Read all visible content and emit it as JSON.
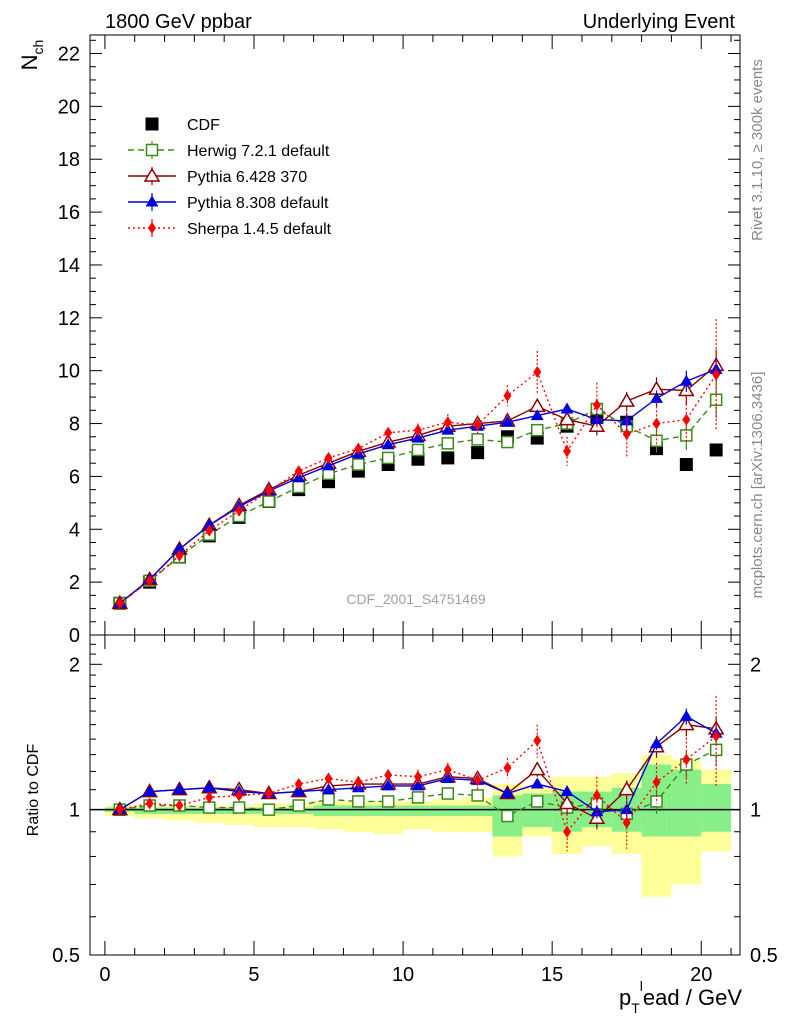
{
  "header": {
    "left": "1800 GeV ppbar",
    "right": "Underlying Event"
  },
  "side_text": {
    "upper": "Rivet 3.1.10, ≥ 300k events",
    "lower": "mcplots.cern.ch [arXiv:1306.3436]"
  },
  "watermark": "CDF_2001_S4751469",
  "colors": {
    "data": "#000000",
    "herwig": "#3a8a1a",
    "pythia6": "#8b0000",
    "pythia8": "#0000dd",
    "sherpa": "#ff0000",
    "band_outer": "#ffff99",
    "band_inner": "#88ee88"
  },
  "chart_data": [
    {
      "type": "line",
      "panel": "main",
      "ylabel_main": "N",
      "ylabel_sub": "ch",
      "xlim": [
        -0.5,
        21.3
      ],
      "ylim": [
        0,
        22.7
      ],
      "yticks": [
        0,
        2,
        4,
        6,
        8,
        10,
        12,
        14,
        16,
        18,
        20,
        22
      ],
      "legend_position": "top-left",
      "x": [
        0.5,
        1.5,
        2.5,
        3.5,
        4.5,
        5.5,
        6.5,
        7.5,
        8.5,
        9.5,
        10.5,
        11.5,
        12.5,
        13.5,
        14.5,
        15.5,
        16.5,
        17.5,
        18.5,
        19.5,
        20.5
      ],
      "series": [
        {
          "name": "CDF",
          "key": "data",
          "marker": "filled-square",
          "style": "none",
          "values": [
            1.2,
            2.0,
            2.95,
            3.75,
            4.45,
            5.05,
            5.5,
            5.8,
            6.2,
            6.45,
            6.65,
            6.7,
            6.9,
            7.5,
            7.45,
            7.9,
            8.25,
            8.05,
            7.05,
            6.45,
            7.0
          ]
        },
        {
          "name": "Herwig 7.2.1 default",
          "key": "herwig",
          "marker": "open-square",
          "style": "dashed",
          "values": [
            1.2,
            2.05,
            2.95,
            3.8,
            4.5,
            5.05,
            5.6,
            6.1,
            6.45,
            6.7,
            7.0,
            7.25,
            7.4,
            7.3,
            7.75,
            8.0,
            8.55,
            7.9,
            7.35,
            7.55,
            8.9
          ],
          "errors": [
            0.05,
            0.05,
            0.05,
            0.05,
            0.05,
            0.05,
            0.1,
            0.1,
            0.1,
            0.1,
            0.1,
            0.1,
            0.15,
            0.15,
            0.2,
            0.25,
            0.4,
            0.3,
            0.45,
            0.55,
            0.7
          ]
        },
        {
          "name": "Pythia 6.428 370",
          "key": "pythia6",
          "marker": "open-triangle",
          "style": "solid",
          "values": [
            1.2,
            2.1,
            3.25,
            4.15,
            4.9,
            5.5,
            6.05,
            6.5,
            6.95,
            7.3,
            7.55,
            7.9,
            8.0,
            8.1,
            8.65,
            8.15,
            7.9,
            8.85,
            9.3,
            9.25,
            10.2
          ],
          "errors": [
            0.05,
            0.05,
            0.05,
            0.05,
            0.05,
            0.05,
            0.1,
            0.1,
            0.1,
            0.1,
            0.1,
            0.1,
            0.15,
            0.2,
            0.3,
            0.35,
            0.35,
            0.35,
            0.45,
            0.55,
            0.6
          ]
        },
        {
          "name": "Pythia 8.308 default",
          "key": "pythia8",
          "marker": "filled-triangle",
          "style": "solid",
          "values": [
            1.2,
            2.1,
            3.25,
            4.15,
            4.85,
            5.45,
            5.95,
            6.4,
            6.85,
            7.2,
            7.45,
            7.75,
            7.9,
            8.05,
            8.3,
            8.55,
            8.15,
            8.1,
            8.95,
            9.6,
            10.05
          ],
          "errors": [
            0.05,
            0.05,
            0.05,
            0.05,
            0.05,
            0.05,
            0.05,
            0.1,
            0.1,
            0.1,
            0.1,
            0.1,
            0.1,
            0.15,
            0.15,
            0.2,
            0.25,
            0.3,
            0.3,
            0.4,
            0.45
          ]
        },
        {
          "name": "Sherpa 1.4.5 default",
          "key": "sherpa",
          "marker": "filled-diamond",
          "style": "dotted",
          "values": [
            1.2,
            2.05,
            3.0,
            3.95,
            4.7,
            5.45,
            6.2,
            6.7,
            7.05,
            7.65,
            7.75,
            8.05,
            7.95,
            9.05,
            9.95,
            6.95,
            8.7,
            7.6,
            8.0,
            8.15,
            9.85
          ],
          "errors": [
            0.05,
            0.05,
            0.05,
            0.05,
            0.05,
            0.1,
            0.1,
            0.15,
            0.15,
            0.2,
            0.25,
            0.3,
            0.35,
            0.4,
            0.8,
            0.55,
            0.85,
            0.9,
            0.8,
            0.9,
            2.1
          ]
        }
      ]
    },
    {
      "type": "line",
      "panel": "ratio",
      "xlabel_main": "p",
      "xlabel_sub": "T",
      "xlabel_sup": "l",
      "xlabel_rest": "ead / GeV",
      "ylabel": "Ratio to CDF",
      "xlim": [
        -0.5,
        21.3
      ],
      "ylim": [
        0.5,
        2.3
      ],
      "scale": "log",
      "xticks": [
        0,
        5,
        10,
        15,
        20
      ],
      "yticks": [
        0.5,
        1,
        2
      ],
      "bands": {
        "edges": [
          1,
          2,
          3,
          4,
          5,
          6,
          7,
          8,
          9,
          10,
          11,
          12,
          13,
          14,
          15,
          16,
          17,
          18,
          19,
          20,
          21
        ],
        "inner_low": [
          0.99,
          0.98,
          0.98,
          0.98,
          0.98,
          0.98,
          0.98,
          0.97,
          0.97,
          0.97,
          0.97,
          0.97,
          0.97,
          0.88,
          0.92,
          0.9,
          0.92,
          0.9,
          0.88,
          0.88,
          0.9
        ],
        "inner_high": [
          1.01,
          1.01,
          1.01,
          1.01,
          1.01,
          1.01,
          1.01,
          1.02,
          1.02,
          1.02,
          1.02,
          1.02,
          1.02,
          1.07,
          1.08,
          1.09,
          1.09,
          1.11,
          1.24,
          1.21,
          1.13
        ],
        "outer_low": [
          0.97,
          0.96,
          0.95,
          0.94,
          0.93,
          0.92,
          0.92,
          0.91,
          0.9,
          0.89,
          0.91,
          0.9,
          0.9,
          0.8,
          0.88,
          0.81,
          0.84,
          0.81,
          0.66,
          0.7,
          0.82
        ],
        "outer_high": [
          1.02,
          1.02,
          1.02,
          1.02,
          1.02,
          1.03,
          1.03,
          1.04,
          1.04,
          1.04,
          1.04,
          1.05,
          1.06,
          1.13,
          1.11,
          1.17,
          1.17,
          1.19,
          1.3,
          1.27,
          1.21
        ]
      },
      "x": [
        0.5,
        1.5,
        2.5,
        3.5,
        4.5,
        5.5,
        6.5,
        7.5,
        8.5,
        9.5,
        10.5,
        11.5,
        12.5,
        13.5,
        14.5,
        15.5,
        16.5,
        17.5,
        18.5,
        19.5,
        20.5
      ],
      "series": [
        {
          "name": "Herwig 7.2.1 default",
          "key": "herwig",
          "values": [
            1.0,
            1.02,
            1.02,
            1.01,
            1.01,
            1.0,
            1.02,
            1.05,
            1.04,
            1.04,
            1.06,
            1.08,
            1.07,
            0.97,
            1.04,
            1.01,
            1.03,
            0.98,
            1.04,
            1.24,
            1.33
          ],
          "errors": [
            0.01,
            0.01,
            0.01,
            0.01,
            0.01,
            0.01,
            0.01,
            0.01,
            0.01,
            0.01,
            0.02,
            0.02,
            0.02,
            0.02,
            0.03,
            0.03,
            0.05,
            0.04,
            0.06,
            0.08,
            0.1
          ]
        },
        {
          "name": "Pythia 6.428 370",
          "key": "pythia6",
          "values": [
            1.0,
            1.09,
            1.1,
            1.11,
            1.1,
            1.08,
            1.09,
            1.12,
            1.13,
            1.13,
            1.13,
            1.17,
            1.16,
            1.08,
            1.21,
            1.03,
            0.96,
            1.1,
            1.35,
            1.5,
            1.47
          ],
          "errors": [
            0.01,
            0.01,
            0.01,
            0.01,
            0.01,
            0.01,
            0.01,
            0.02,
            0.02,
            0.02,
            0.02,
            0.02,
            0.02,
            0.03,
            0.04,
            0.05,
            0.05,
            0.05,
            0.07,
            0.08,
            0.09
          ]
        },
        {
          "name": "Pythia 8.308 default",
          "key": "pythia8",
          "values": [
            1.0,
            1.09,
            1.1,
            1.11,
            1.09,
            1.08,
            1.09,
            1.1,
            1.11,
            1.12,
            1.12,
            1.16,
            1.15,
            1.08,
            1.13,
            1.09,
            0.99,
            1.0,
            1.37,
            1.56,
            1.44
          ],
          "errors": [
            0.01,
            0.01,
            0.01,
            0.01,
            0.01,
            0.01,
            0.01,
            0.01,
            0.01,
            0.01,
            0.02,
            0.02,
            0.02,
            0.02,
            0.02,
            0.03,
            0.03,
            0.04,
            0.04,
            0.06,
            0.06
          ]
        },
        {
          "name": "Sherpa 1.4.5 default",
          "key": "sherpa",
          "values": [
            1.0,
            1.03,
            1.02,
            1.06,
            1.07,
            1.08,
            1.13,
            1.16,
            1.14,
            1.18,
            1.17,
            1.21,
            1.15,
            1.22,
            1.39,
            0.9,
            1.07,
            0.94,
            1.14,
            1.27,
            1.42
          ],
          "errors": [
            0.01,
            0.01,
            0.01,
            0.02,
            0.02,
            0.02,
            0.02,
            0.03,
            0.03,
            0.03,
            0.04,
            0.04,
            0.05,
            0.06,
            0.11,
            0.08,
            0.1,
            0.11,
            0.11,
            0.14,
            0.3
          ]
        }
      ]
    }
  ]
}
